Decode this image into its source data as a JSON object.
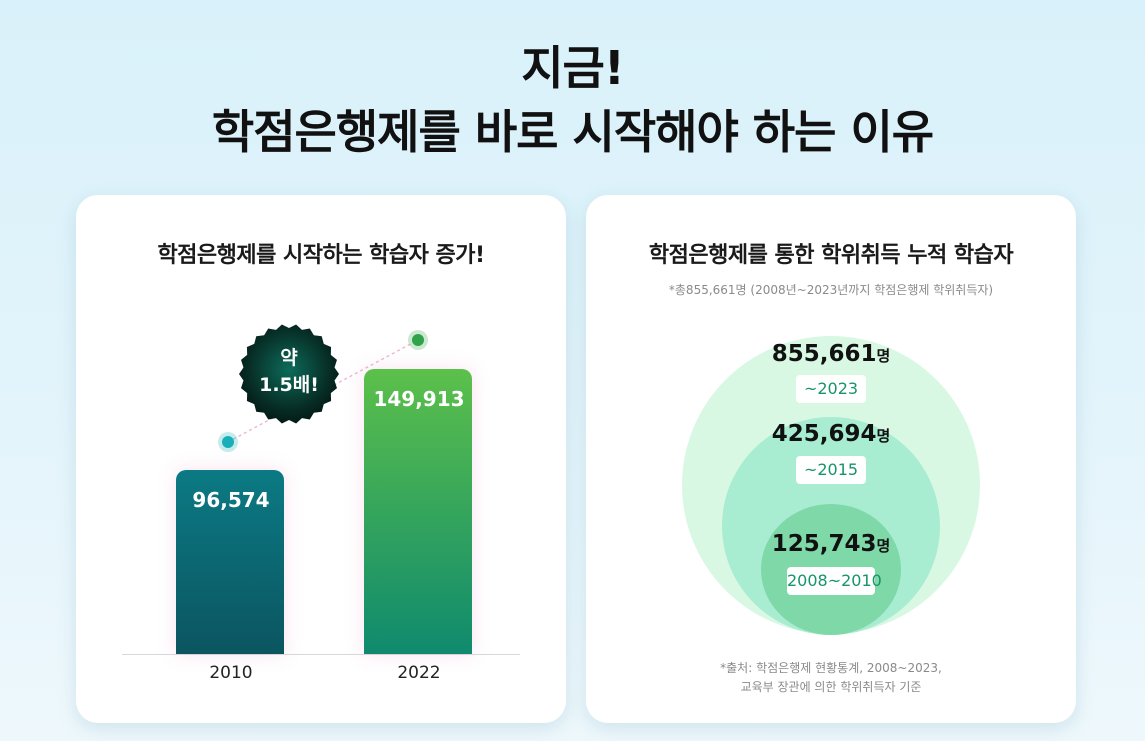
{
  "headline": {
    "line1": "지금!",
    "line2": "학점은행제를 바로 시작해야 하는 이유"
  },
  "left_card": {
    "title": "학점은행제를 시작하는 학습자 증가!",
    "badge": {
      "line1": "약",
      "line2": "1.5배!"
    }
  },
  "right_card": {
    "title": "학점은행제를 통한 학위취득 누적 학습자",
    "subtitle": "*총855,661명 (2008년~2023년까지 학점은행제 학위취득자)",
    "source_line1": "*출처: 학점은행제 현황통계, 2008~2023,",
    "source_line2": "교육부 장관에 의한 학위취득자 기준",
    "unit": "명"
  },
  "colors": {
    "bar_2010_top": "#0b7a84",
    "bar_2010_bottom": "#0b5560",
    "bar_2022_top": "#5cc04a",
    "bar_2022_bottom": "#0f8a6e",
    "dot_2010": "#18b0b8",
    "dot_2022": "#2fa24a",
    "circle_outer": "#d8f8e4",
    "circle_mid": "#a8ecd2",
    "circle_inner": "#7fd8a8",
    "accent_text": "#16946a"
  },
  "chart_data": [
    {
      "type": "bar",
      "title": "학점은행제를 시작하는 학습자 증가!",
      "categories": [
        "2010",
        "2022"
      ],
      "values": [
        96574,
        149913
      ],
      "value_labels": [
        "96,574",
        "149,913"
      ],
      "annotation": "약 1.5배!",
      "ylim": [
        0,
        200000
      ],
      "grid": false
    },
    {
      "type": "nested-circles",
      "title": "학점은행제를 통한 학위취득 누적 학습자",
      "categories": [
        "~2023",
        "~2015",
        "2008~2010"
      ],
      "values": [
        855661,
        425694,
        125743
      ],
      "value_labels": [
        "855,661",
        "425,694",
        "125,743"
      ],
      "unit": "명"
    }
  ]
}
